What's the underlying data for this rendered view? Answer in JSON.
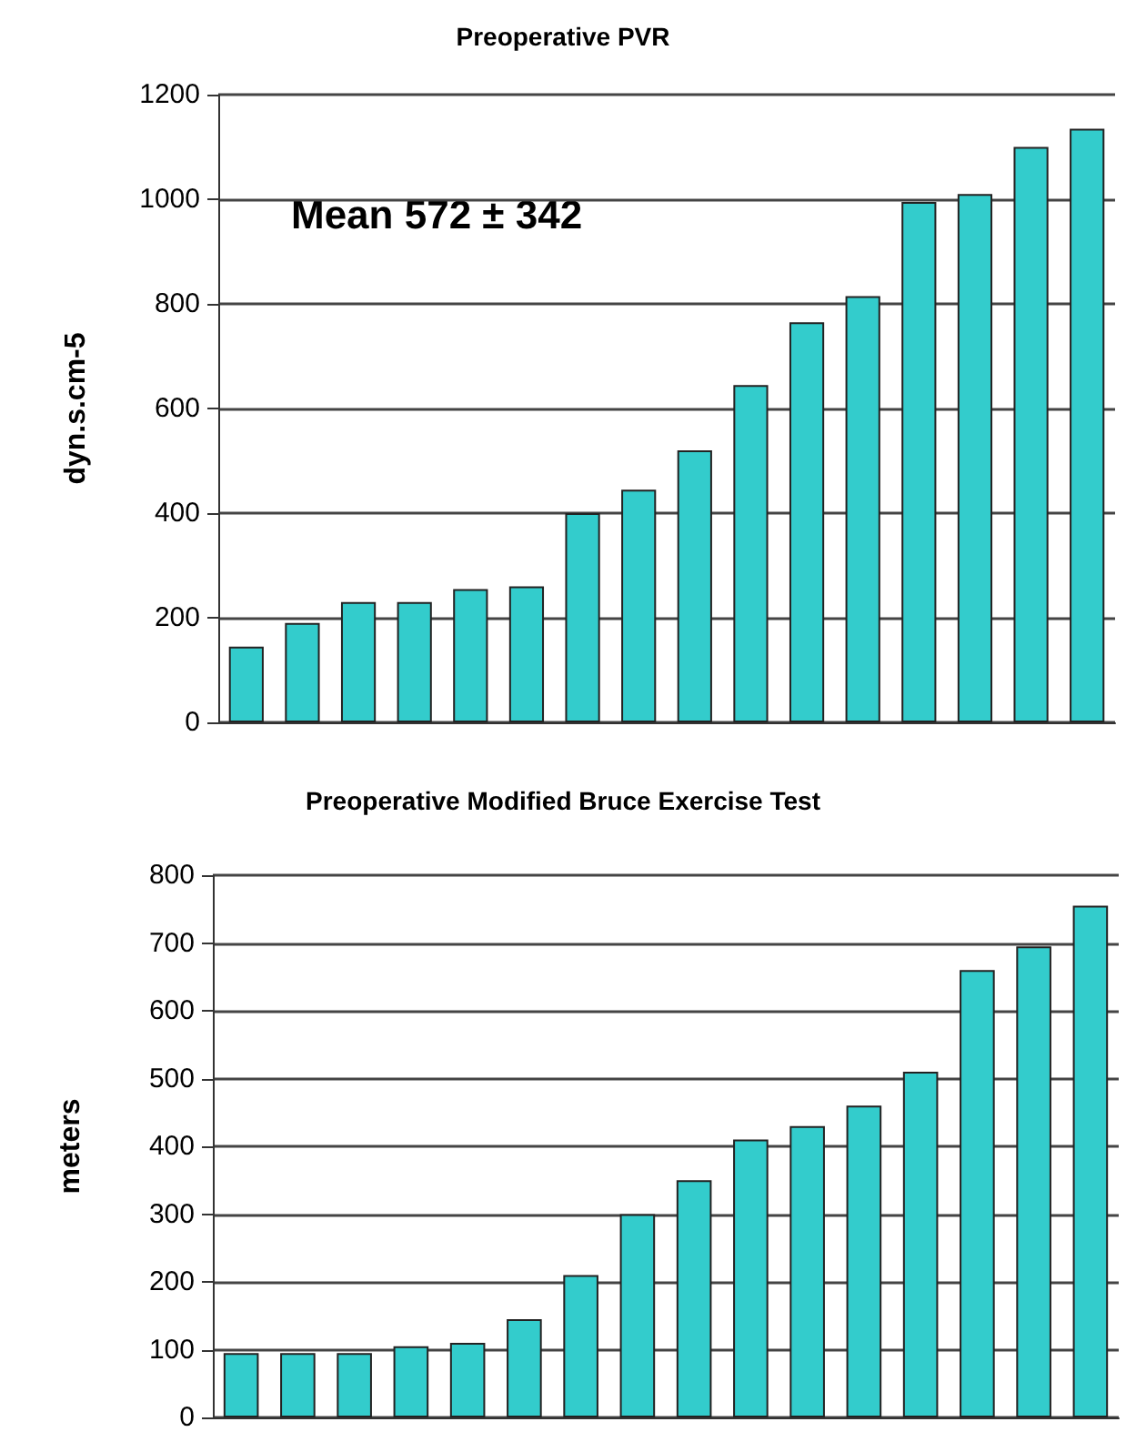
{
  "chart_data": [
    {
      "type": "bar",
      "title": "Preoperative PVR",
      "ylabel": "dyn.s.cm-5",
      "categories": [
        null,
        null,
        null,
        null,
        null,
        null,
        null,
        null,
        null,
        null,
        null,
        null,
        null,
        null,
        null,
        null
      ],
      "series": [
        {
          "color": "#33cccc",
          "values": [
            145,
            190,
            230,
            230,
            255,
            260,
            400,
            445,
            520,
            645,
            765,
            815,
            995,
            1010,
            1100,
            1135
          ]
        }
      ],
      "ylim": [
        0,
        1200
      ],
      "yticks": [
        0,
        200,
        400,
        600,
        800,
        1000,
        1200
      ],
      "grid": "y",
      "annotations": [
        "Mean 572 ± 342"
      ]
    },
    {
      "type": "bar",
      "title": "Preoperative Modified Bruce Exercise Test",
      "ylabel": "meters",
      "categories": [
        null,
        null,
        null,
        null,
        null,
        null,
        null,
        null,
        null,
        null,
        null,
        null,
        null,
        null,
        null,
        null
      ],
      "series": [
        {
          "color": "#33cccc",
          "values": [
            95,
            95,
            95,
            105,
            110,
            145,
            210,
            300,
            350,
            410,
            430,
            460,
            510,
            660,
            695,
            755
          ]
        }
      ],
      "ylim": [
        0,
        800
      ],
      "yticks": [
        0,
        100,
        200,
        300,
        400,
        500,
        600,
        700,
        800
      ],
      "grid": "y"
    }
  ]
}
